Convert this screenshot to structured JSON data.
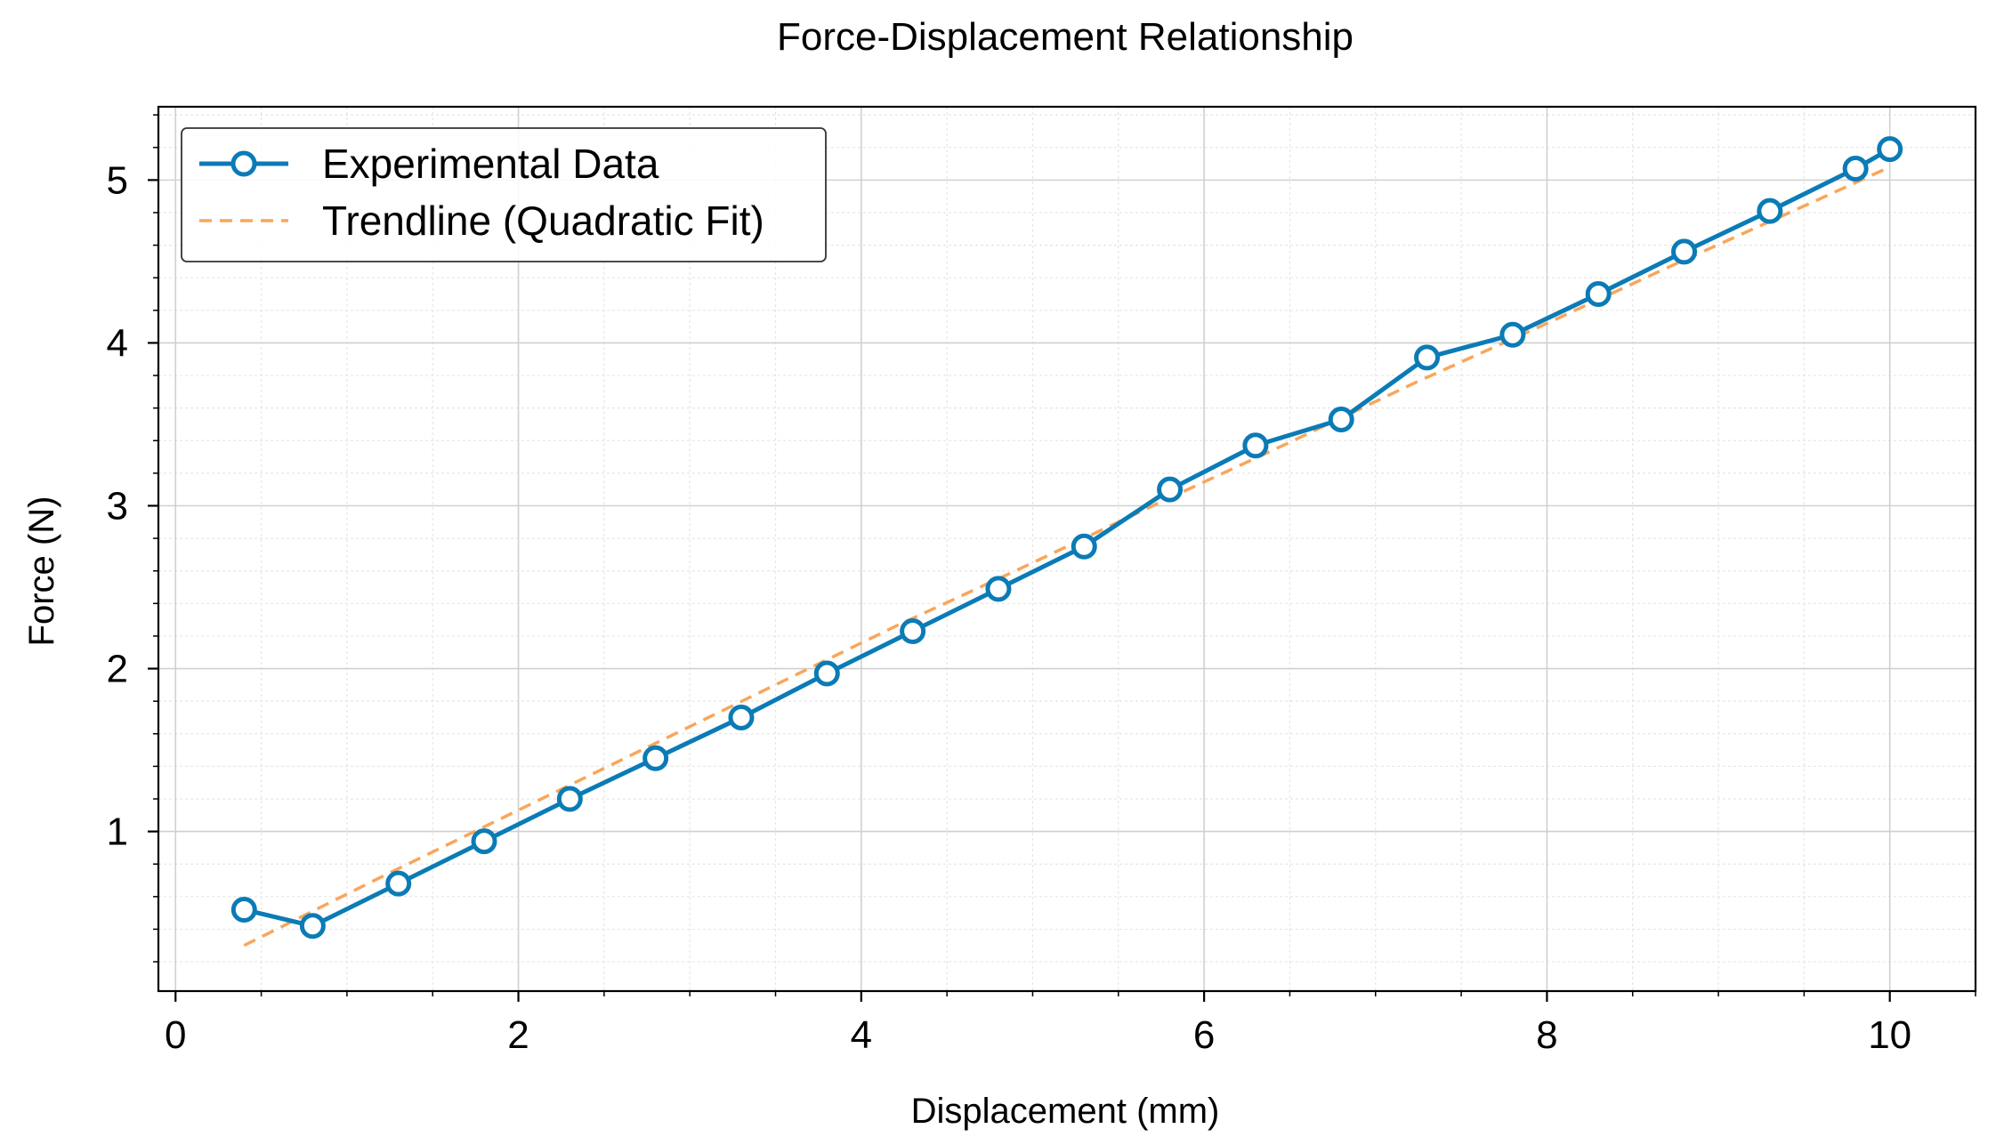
{
  "chart_data": {
    "type": "line",
    "title": "Force-Displacement Relationship",
    "xlabel": "Displacement (mm)",
    "ylabel": "Force (N)",
    "xlim": [
      -0.1,
      10.5
    ],
    "ylim": [
      0.02,
      5.45
    ],
    "xticks": [
      0,
      2,
      4,
      6,
      8,
      10
    ],
    "xtick_labels": [
      "0",
      "2",
      "4",
      "6",
      "8",
      "10"
    ],
    "yticks": [
      1,
      2,
      3,
      4,
      5
    ],
    "ytick_labels": [
      "1",
      "2",
      "3",
      "4",
      "5"
    ],
    "grid": true,
    "minor_grid": true,
    "legend_position": "top-left",
    "series": [
      {
        "name": "Experimental Data",
        "style": "solid-line-circle-markers",
        "color": "#0b7bb6",
        "x": [
          0.4,
          0.8,
          1.3,
          1.8,
          2.3,
          2.8,
          3.3,
          3.8,
          4.3,
          4.8,
          5.3,
          5.8,
          6.3,
          6.8,
          7.3,
          7.8,
          8.3,
          8.8,
          9.3,
          9.8,
          10.0
        ],
        "y": [
          0.52,
          0.42,
          0.68,
          0.94,
          1.2,
          1.45,
          1.7,
          1.97,
          2.23,
          2.49,
          2.75,
          3.1,
          3.37,
          3.53,
          3.91,
          4.05,
          4.3,
          4.56,
          4.81,
          5.07,
          5.19
        ]
      },
      {
        "name": "Trendline (Quadratic Fit)",
        "style": "dashed-line",
        "color": "#f9a65a",
        "x": [
          0.4,
          1.16,
          1.92,
          2.68,
          3.44,
          4.2,
          4.96,
          5.72,
          6.48,
          7.24,
          8.0,
          8.76,
          9.52,
          10.0
        ],
        "y": [
          0.3,
          0.7,
          1.09,
          1.48,
          1.87,
          2.26,
          2.63,
          3.01,
          3.38,
          3.76,
          4.12,
          4.49,
          4.85,
          5.08
        ]
      }
    ]
  }
}
